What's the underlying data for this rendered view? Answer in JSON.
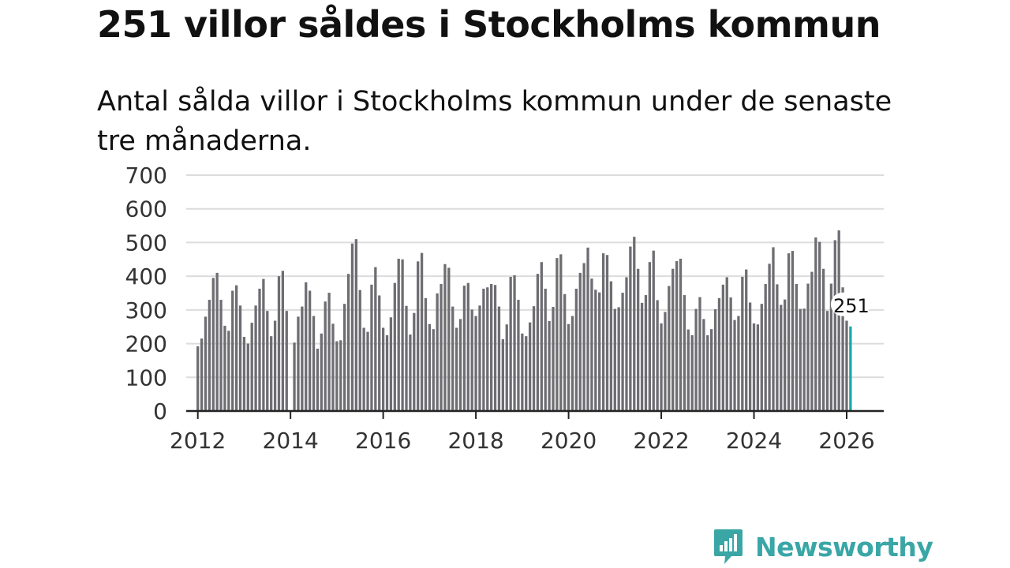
{
  "header": {
    "title": "251 villor såldes i Stockholms kommun",
    "subtitle": "Antal sålda villor i Stockholms kommun under de senaste tre månaderna."
  },
  "brand": {
    "name": "Newsworthy",
    "icon": "newsworthy-chart-bubble-icon",
    "color": "#3aa6a6"
  },
  "colors": {
    "bar": "#6e6d72",
    "highlight": "#1ea6a6",
    "grid": "#dcdcdc",
    "axis": "#222222"
  },
  "chart_data": {
    "type": "bar",
    "title": "251 villor såldes i Stockholms kommun",
    "subtitle": "Antal sålda villor i Stockholms kommun under de senaste tre månaderna.",
    "xlabel": "",
    "ylabel": "",
    "ylim": [
      0,
      700
    ],
    "yticks": [
      0,
      100,
      200,
      300,
      400,
      500,
      600,
      700
    ],
    "xlim": [
      2011.75,
      2026.8
    ],
    "xticks": [
      2012,
      2014,
      2016,
      2018,
      2020,
      2022,
      2024,
      2026
    ],
    "x_start": 2012.0,
    "x_step": 0.08333,
    "grid": true,
    "highlight": {
      "label": "251",
      "value": 251
    },
    "series": [
      {
        "name": "Antal sålda villor",
        "values": [
          192,
          215,
          280,
          330,
          395,
          410,
          330,
          253,
          238,
          357,
          373,
          313,
          220,
          200,
          262,
          313,
          363,
          392,
          297,
          222,
          268,
          400,
          416,
          297,
          null,
          203,
          280,
          310,
          382,
          357,
          282,
          185,
          230,
          325,
          351,
          259,
          207,
          210,
          318,
          407,
          497,
          510,
          359,
          247,
          235,
          375,
          427,
          343,
          247,
          225,
          278,
          380,
          452,
          450,
          312,
          227,
          291,
          444,
          469,
          335,
          258,
          243,
          349,
          377,
          436,
          425,
          310,
          247,
          273,
          372,
          380,
          301,
          282,
          313,
          363,
          367,
          377,
          374,
          310,
          213,
          257,
          398,
          403,
          330,
          230,
          222,
          263,
          311,
          407,
          442,
          363,
          267,
          309,
          454,
          465,
          347,
          258,
          282,
          363,
          410,
          439,
          485,
          393,
          360,
          352,
          468,
          463,
          385,
          303,
          308,
          351,
          397,
          488,
          517,
          422,
          321,
          344,
          442,
          476,
          329,
          260,
          294,
          371,
          422,
          445,
          452,
          344,
          242,
          225,
          303,
          338,
          273,
          225,
          243,
          302,
          335,
          375,
          397,
          337,
          270,
          282,
          398,
          420,
          322,
          260,
          257,
          318,
          377,
          437,
          486,
          376,
          315,
          331,
          468,
          475,
          377,
          303,
          304,
          378,
          413,
          515,
          502,
          422,
          297,
          378,
          507,
          536,
          367,
          268,
          251
        ]
      }
    ]
  }
}
